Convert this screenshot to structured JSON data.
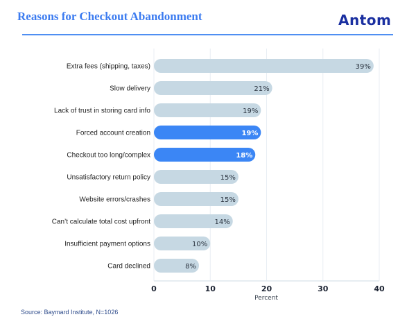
{
  "header": {
    "title": "Reasons for Checkout Abandonment",
    "logo": "Antom"
  },
  "footer": {
    "source": "Source: Baymard Institute, N=1026"
  },
  "colors": {
    "title": "#3b7bf0",
    "logo": "#1a2fa0",
    "bar_default": "#c6d8e3",
    "bar_highlight": "#3b86f5",
    "label_default": "#2b3440",
    "label_highlight": "#ffffff"
  },
  "chart_data": {
    "type": "bar",
    "orientation": "horizontal",
    "title": "Reasons for Checkout Abandonment",
    "xlabel": "Percent",
    "ylabel": "",
    "xlim": [
      0,
      40
    ],
    "xticks": [
      0,
      10,
      20,
      30,
      40
    ],
    "grid": true,
    "categories": [
      "Extra fees (shipping, taxes)",
      "Slow delivery",
      "Lack of trust in storing card info",
      "Forced account creation",
      "Checkout too long/complex",
      "Unsatisfactory return policy",
      "Website errors/crashes",
      "Can’t calculate total cost upfront",
      "Insufficient payment options",
      "Card declined"
    ],
    "values": [
      39,
      21,
      19,
      19,
      18,
      15,
      15,
      14,
      10,
      8
    ],
    "value_labels": [
      "39%",
      "21%",
      "19%",
      "19%",
      "18%",
      "15%",
      "15%",
      "14%",
      "10%",
      "8%"
    ],
    "highlighted": [
      false,
      false,
      false,
      true,
      true,
      false,
      false,
      false,
      false,
      false
    ]
  }
}
